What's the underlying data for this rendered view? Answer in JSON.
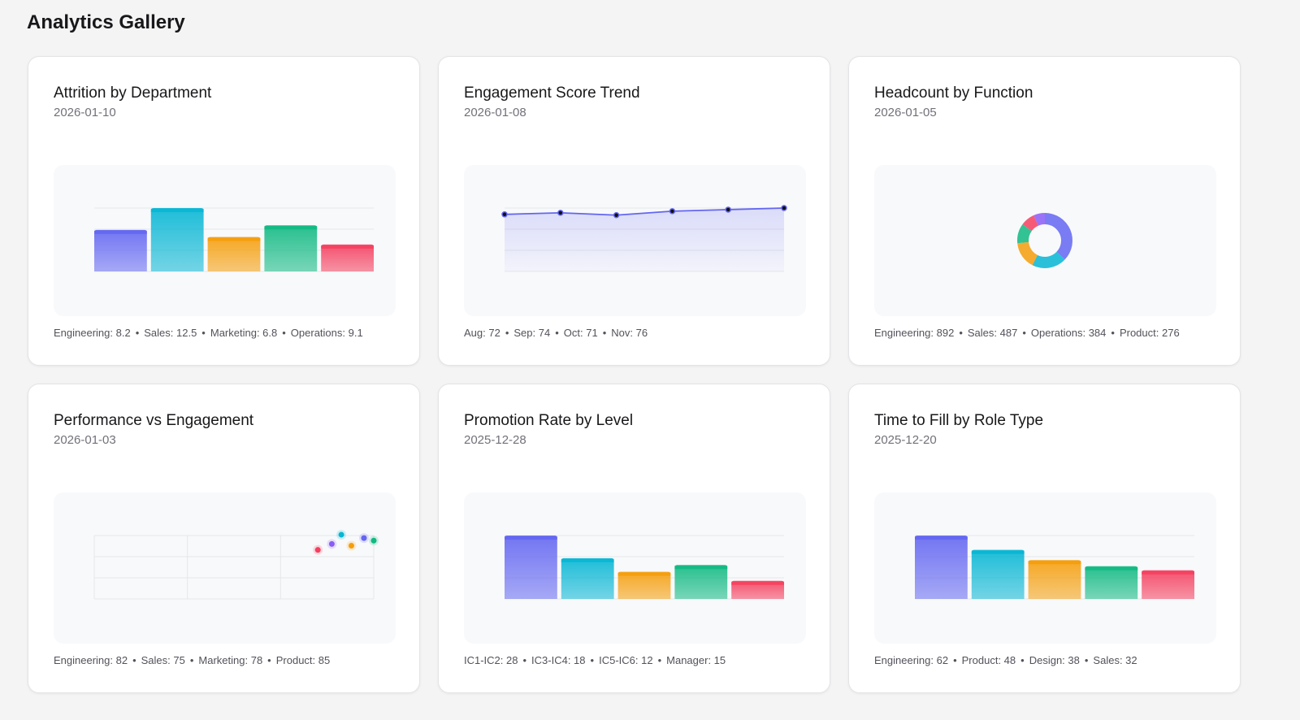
{
  "page": {
    "title": "Analytics Gallery"
  },
  "palette": [
    "#6366f1",
    "#06b6d4",
    "#f59e0b",
    "#10b981",
    "#f43f5e",
    "#8b5cf6"
  ],
  "cards": [
    {
      "title": "Attrition by Department",
      "date": "2026-01-10",
      "footer": [
        "Engineering: 8.2",
        "Sales: 12.5",
        "Marketing: 6.8",
        "Operations: 9.1"
      ],
      "chart_data": {
        "type": "bar",
        "values": [
          8.2,
          12.5,
          6.8,
          9.1,
          5.3
        ],
        "ylim": [
          0,
          12.5
        ],
        "grid": true
      }
    },
    {
      "title": "Engagement Score Trend",
      "date": "2026-01-08",
      "footer": [
        "Aug: 72",
        "Sep: 74",
        "Oct: 71",
        "Nov: 76"
      ],
      "chart_data": {
        "type": "area",
        "values": [
          72,
          74,
          71,
          76,
          78,
          80
        ],
        "ylim": [
          0,
          80
        ],
        "grid": true,
        "color": "#6366f1"
      }
    },
    {
      "title": "Headcount by Function",
      "date": "2026-01-05",
      "footer": [
        "Engineering: 892",
        "Sales: 487",
        "Operations: 384",
        "Product: 276"
      ],
      "chart_data": {
        "type": "pie",
        "donut": true,
        "values": [
          892,
          487,
          384,
          276,
          200,
          160
        ]
      }
    },
    {
      "title": "Performance vs Engagement",
      "date": "2026-01-03",
      "footer": [
        "Engineering: 82",
        "Sales: 75",
        "Marketing: 78",
        "Product: 85"
      ],
      "chart_data": {
        "type": "scatter",
        "points": [
          [
            80,
            58
          ],
          [
            85,
            65
          ],
          [
            88.4,
            76
          ],
          [
            92,
            63
          ],
          [
            96.5,
            72
          ],
          [
            100,
            69
          ]
        ],
        "point_colors": [
          "#f43f5e",
          "#8b5cf6",
          "#06b6d4",
          "#f59e0b",
          "#6366f1",
          "#10b981"
        ],
        "xlim": [
          0,
          100
        ],
        "ylim": [
          0,
          75
        ],
        "grid": true
      }
    },
    {
      "title": "Promotion Rate by Level",
      "date": "2025-12-28",
      "footer": [
        "IC1-IC2: 28",
        "IC3-IC4: 18",
        "IC5-IC6: 12",
        "Manager: 15"
      ],
      "chart_data": {
        "type": "bar",
        "values": [
          28,
          18,
          12,
          15,
          8
        ],
        "ylim": [
          0,
          28
        ],
        "grid": true
      }
    },
    {
      "title": "Time to Fill by Role Type",
      "date": "2025-12-20",
      "footer": [
        "Engineering: 62",
        "Product: 48",
        "Design: 38",
        "Sales: 32"
      ],
      "chart_data": {
        "type": "bar",
        "values": [
          62,
          48,
          38,
          32,
          28
        ],
        "ylim": [
          0,
          62
        ],
        "grid": true
      }
    }
  ]
}
